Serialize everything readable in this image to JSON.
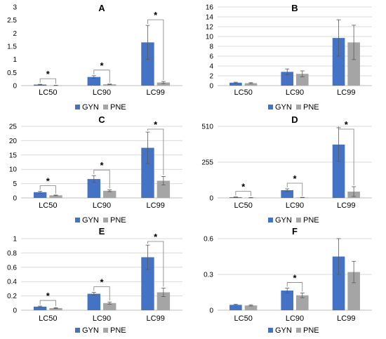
{
  "figure": {
    "series_colors": {
      "GYN": "#4472C4",
      "PNE": "#A5A5A5"
    },
    "errorbar_color": "#595959",
    "bracket_color": "#7f7f7f",
    "gridline_color": "#d9d9d9"
  },
  "chart_data": [
    {
      "type": "bar",
      "title": "A",
      "categories": [
        "LC50",
        "LC90",
        "LC99"
      ],
      "series": [
        {
          "name": "GYN",
          "values": [
            0.04,
            0.33,
            1.65
          ],
          "errors": [
            0.01,
            0.05,
            0.65
          ]
        },
        {
          "name": "PNE",
          "values": [
            0.01,
            0.05,
            0.12
          ],
          "errors": [
            0.005,
            0.01,
            0.04
          ]
        }
      ],
      "ylim": [
        0,
        3
      ],
      "yticks": [
        "0",
        "0.5",
        "1",
        "1.5",
        "2",
        "2.5",
        "3"
      ],
      "legend": [
        "GYN",
        "PNE"
      ],
      "legend_position": "bottom",
      "grid": false,
      "significance": [
        {
          "category": "LC50",
          "label": "*"
        },
        {
          "category": "LC90",
          "label": "*"
        },
        {
          "category": "LC99",
          "label": "*"
        }
      ]
    },
    {
      "type": "bar",
      "title": "B",
      "categories": [
        "LC50",
        "LC90",
        "LC99"
      ],
      "series": [
        {
          "name": "GYN",
          "values": [
            0.6,
            2.8,
            9.7
          ],
          "errors": [
            0.1,
            0.6,
            3.7
          ]
        },
        {
          "name": "PNE",
          "values": [
            0.5,
            2.4,
            8.8
          ],
          "errors": [
            0.1,
            0.6,
            3.5
          ]
        }
      ],
      "ylim": [
        0,
        16
      ],
      "yticks": [
        "0",
        "2",
        "4",
        "6",
        "8",
        "10",
        "12",
        "14",
        "16"
      ],
      "legend": [
        "GYN",
        "PNE"
      ],
      "legend_position": "bottom",
      "grid": true,
      "significance": []
    },
    {
      "type": "bar",
      "title": "C",
      "categories": [
        "LC50",
        "LC90",
        "LC99"
      ],
      "series": [
        {
          "name": "GYN",
          "values": [
            2.0,
            6.6,
            17.5
          ],
          "errors": [
            0.3,
            1.2,
            5.5
          ]
        },
        {
          "name": "PNE",
          "values": [
            0.9,
            2.5,
            6.0
          ],
          "errors": [
            0.1,
            0.3,
            1.5
          ]
        }
      ],
      "ylim": [
        0,
        25
      ],
      "yticks": [
        "0",
        "5",
        "10",
        "15",
        "20",
        "25"
      ],
      "legend": [
        "GYN",
        "PNE"
      ],
      "legend_position": "bottom",
      "grid": true,
      "significance": [
        {
          "category": "LC50",
          "label": "*"
        },
        {
          "category": "LC90",
          "label": "*"
        },
        {
          "category": "LC99",
          "label": "*"
        }
      ]
    },
    {
      "type": "bar",
      "title": "D",
      "categories": [
        "LC50",
        "LC90",
        "LC99"
      ],
      "series": [
        {
          "name": "GYN",
          "values": [
            5,
            55,
            380
          ],
          "errors": [
            2,
            10,
            120
          ]
        },
        {
          "name": "PNE",
          "values": [
            2,
            3,
            45
          ],
          "errors": [
            1,
            1,
            35
          ]
        }
      ],
      "ylim": [
        0,
        510
      ],
      "yticks": [
        "0",
        "255",
        "510"
      ],
      "legend": [
        "GYN",
        "PNE"
      ],
      "legend_position": "bottom",
      "grid": true,
      "significance": [
        {
          "category": "LC50",
          "label": "*"
        },
        {
          "category": "LC90",
          "label": "*"
        },
        {
          "category": "LC99",
          "label": "*"
        }
      ]
    },
    {
      "type": "bar",
      "title": "E",
      "categories": [
        "LC50",
        "LC90",
        "LC99"
      ],
      "series": [
        {
          "name": "GYN",
          "values": [
            0.05,
            0.23,
            0.74
          ],
          "errors": [
            0.008,
            0.02,
            0.17
          ]
        },
        {
          "name": "PNE",
          "values": [
            0.03,
            0.1,
            0.25
          ],
          "errors": [
            0.005,
            0.015,
            0.06
          ]
        }
      ],
      "ylim": [
        0,
        1
      ],
      "yticks": [
        "0",
        "0.2",
        "0.4",
        "0.6",
        "0.8",
        "1"
      ],
      "legend": [
        "GYN",
        "PNE"
      ],
      "legend_position": "bottom",
      "grid": true,
      "significance": [
        {
          "category": "LC50",
          "label": "*"
        },
        {
          "category": "LC90",
          "label": "*"
        },
        {
          "category": "LC99",
          "label": "*"
        }
      ]
    },
    {
      "type": "bar",
      "title": "F",
      "categories": [
        "LC50",
        "LC90",
        "LC99"
      ],
      "series": [
        {
          "name": "GYN",
          "values": [
            0.045,
            0.165,
            0.45
          ],
          "errors": [
            0.005,
            0.02,
            0.15
          ]
        },
        {
          "name": "PNE",
          "values": [
            0.04,
            0.125,
            0.32
          ],
          "errors": [
            0.005,
            0.02,
            0.09
          ]
        }
      ],
      "ylim": [
        0,
        0.6
      ],
      "yticks": [
        "0",
        "0.3",
        "0.6"
      ],
      "legend": [
        "GYN",
        "PNE"
      ],
      "legend_position": "bottom",
      "grid": true,
      "significance": [
        {
          "category": "LC90",
          "label": "*"
        }
      ]
    }
  ]
}
